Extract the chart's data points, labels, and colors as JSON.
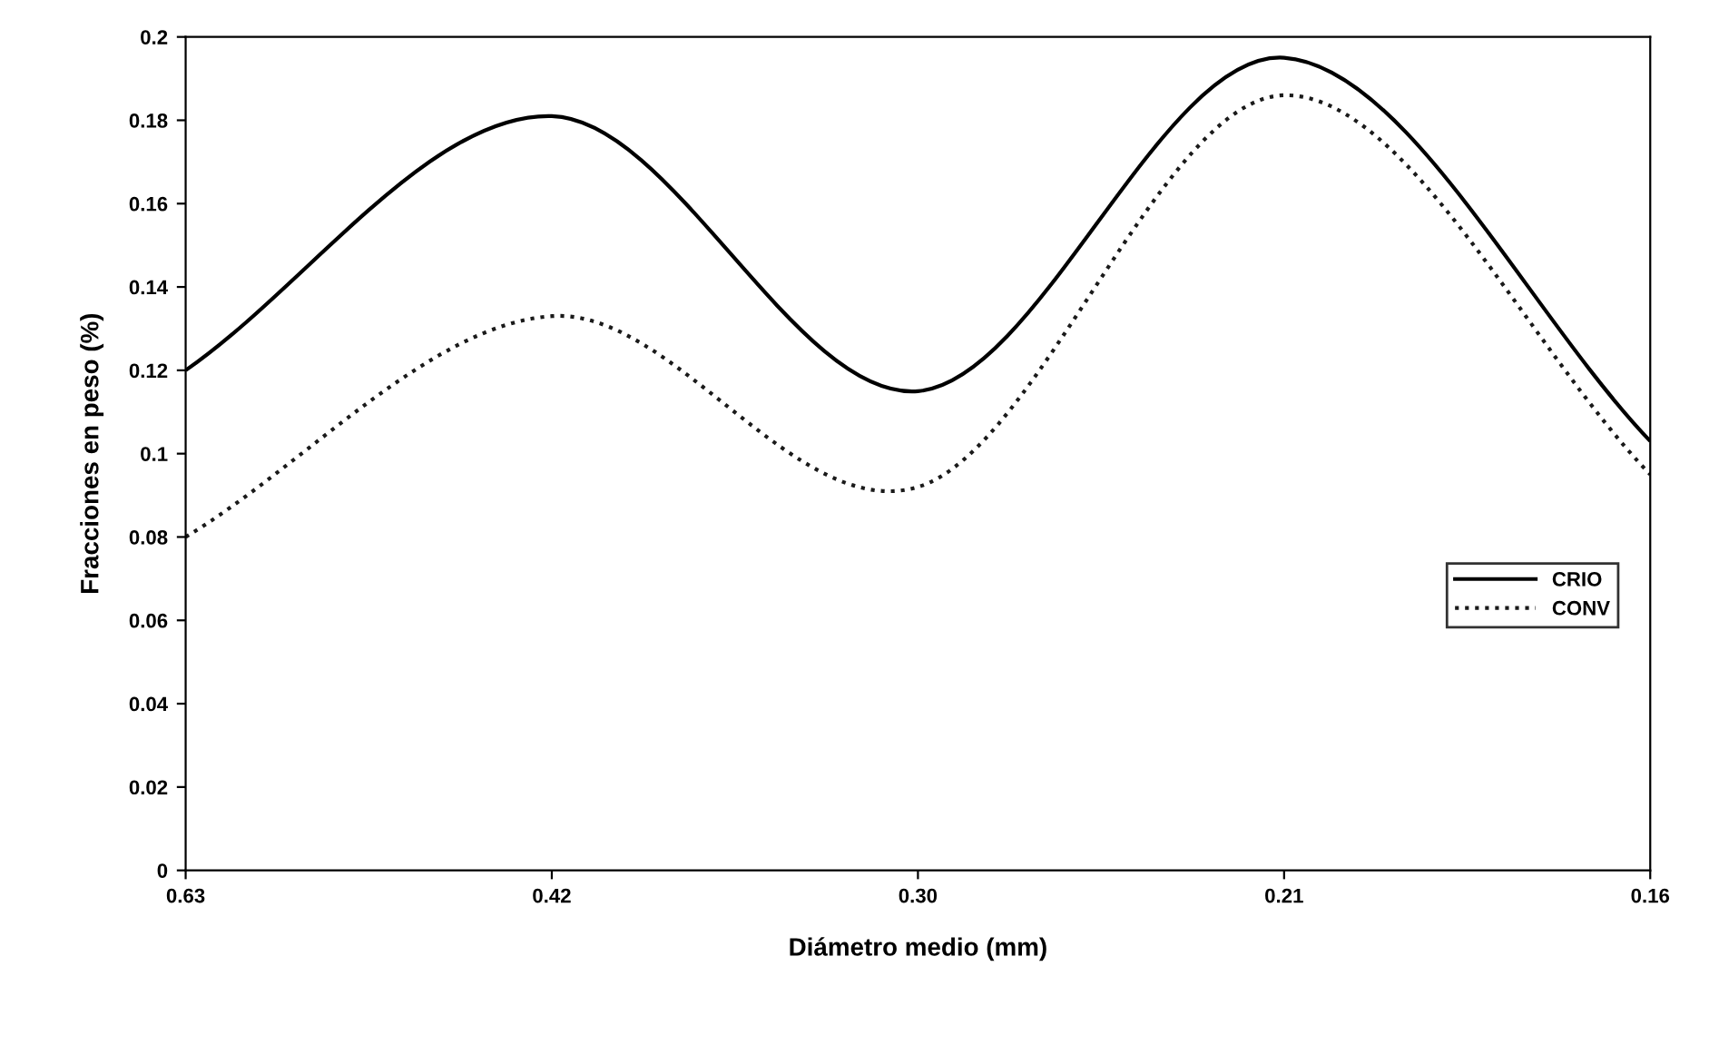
{
  "chart_data": {
    "type": "line",
    "xlabel": "Diámetro medio (mm)",
    "ylabel": "Fracciones en peso (%)",
    "categories": [
      "0.63",
      "0.42",
      "0.30",
      "0.21",
      "0.16"
    ],
    "series": [
      {
        "name": "CRIO",
        "color": "#000000",
        "line_style": "solid",
        "values": [
          0.12,
          0.181,
          0.115,
          0.195,
          0.103
        ]
      },
      {
        "name": "CONV",
        "color": "#1a1a1a",
        "line_style": "dotted",
        "values": [
          0.08,
          0.133,
          0.092,
          0.186,
          0.095
        ]
      }
    ],
    "ylim": [
      0,
      0.2
    ],
    "yticks": [
      0,
      0.02,
      0.04,
      0.06,
      0.08,
      0.1,
      0.12,
      0.14,
      0.16,
      0.18,
      0.2
    ],
    "grid": false,
    "legend": "right",
    "marker": "none"
  }
}
